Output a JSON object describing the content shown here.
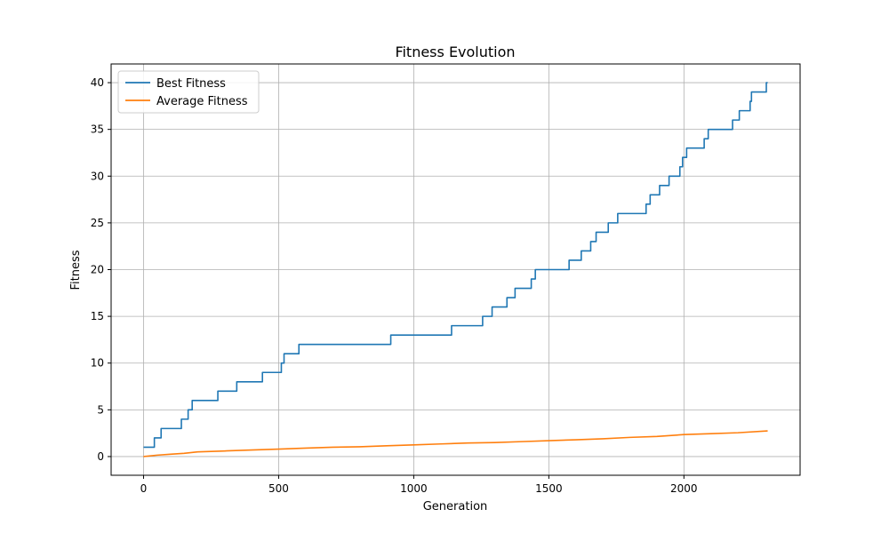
{
  "chart_data": {
    "type": "line",
    "title": "Fitness Evolution",
    "xlabel": "Generation",
    "ylabel": "Fitness",
    "xlim": [
      -120,
      2430
    ],
    "ylim": [
      -2,
      42
    ],
    "xticks": [
      0,
      500,
      1000,
      1500,
      2000
    ],
    "yticks": [
      0,
      5,
      10,
      15,
      20,
      25,
      30,
      35,
      40
    ],
    "grid": true,
    "legend_position": "top-left",
    "series": [
      {
        "name": "Best Fitness",
        "color": "#1f77b4",
        "step": true,
        "points": [
          [
            0,
            1
          ],
          [
            40,
            2
          ],
          [
            65,
            3
          ],
          [
            140,
            4
          ],
          [
            165,
            5
          ],
          [
            180,
            6
          ],
          [
            275,
            7
          ],
          [
            345,
            8
          ],
          [
            440,
            9
          ],
          [
            510,
            10
          ],
          [
            520,
            11
          ],
          [
            575,
            12
          ],
          [
            915,
            13
          ],
          [
            1140,
            14
          ],
          [
            1255,
            15
          ],
          [
            1290,
            16
          ],
          [
            1345,
            17
          ],
          [
            1375,
            18
          ],
          [
            1435,
            19
          ],
          [
            1450,
            20
          ],
          [
            1575,
            21
          ],
          [
            1620,
            22
          ],
          [
            1655,
            23
          ],
          [
            1675,
            24
          ],
          [
            1720,
            25
          ],
          [
            1755,
            26
          ],
          [
            1860,
            27
          ],
          [
            1875,
            28
          ],
          [
            1910,
            29
          ],
          [
            1945,
            30
          ],
          [
            1985,
            31
          ],
          [
            1995,
            32
          ],
          [
            2010,
            33
          ],
          [
            2075,
            34
          ],
          [
            2090,
            35
          ],
          [
            2180,
            36
          ],
          [
            2205,
            37
          ],
          [
            2245,
            38
          ],
          [
            2250,
            39
          ],
          [
            2305,
            40
          ],
          [
            2310,
            40
          ]
        ]
      },
      {
        "name": "Average Fitness",
        "color": "#ff7f0e",
        "step": false,
        "points": [
          [
            0,
            0.0
          ],
          [
            50,
            0.15
          ],
          [
            100,
            0.25
          ],
          [
            150,
            0.35
          ],
          [
            200,
            0.5
          ],
          [
            300,
            0.6
          ],
          [
            400,
            0.7
          ],
          [
            500,
            0.8
          ],
          [
            600,
            0.9
          ],
          [
            700,
            1.0
          ],
          [
            800,
            1.05
          ],
          [
            900,
            1.15
          ],
          [
            1000,
            1.25
          ],
          [
            1100,
            1.35
          ],
          [
            1200,
            1.45
          ],
          [
            1300,
            1.5
          ],
          [
            1400,
            1.6
          ],
          [
            1500,
            1.7
          ],
          [
            1600,
            1.8
          ],
          [
            1700,
            1.9
          ],
          [
            1800,
            2.05
          ],
          [
            1900,
            2.15
          ],
          [
            2000,
            2.35
          ],
          [
            2100,
            2.45
          ],
          [
            2200,
            2.55
          ],
          [
            2310,
            2.75
          ]
        ]
      }
    ]
  }
}
